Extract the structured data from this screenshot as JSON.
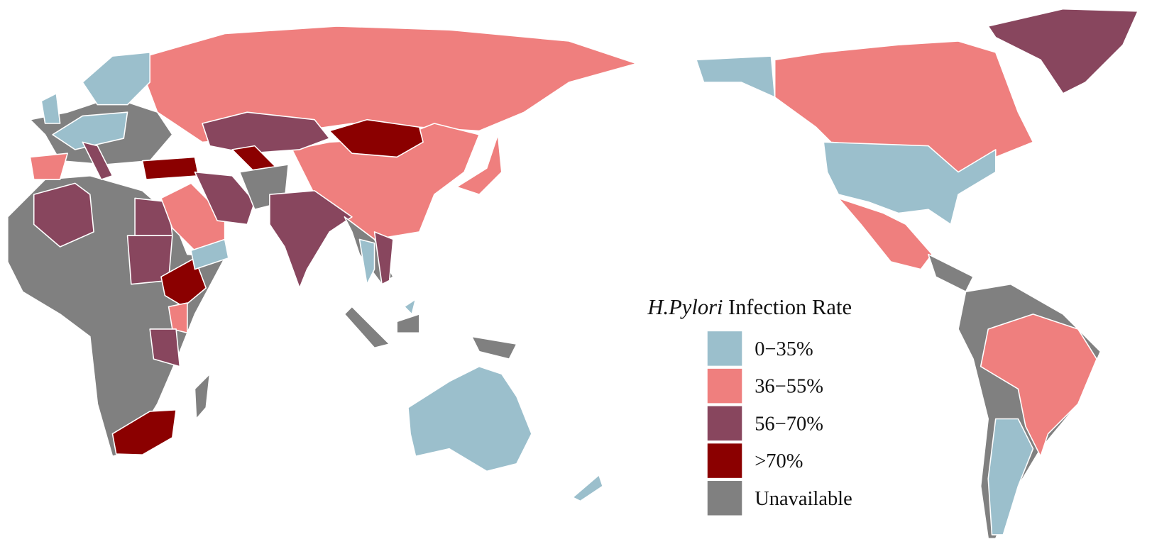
{
  "legend": {
    "title_italic": "H.Pylori",
    "title": "Infection Rate",
    "items": [
      {
        "label": "0−35%",
        "color": "#9bbfcc"
      },
      {
        "label": "36−55%",
        "color": "#ef7f7e"
      },
      {
        "label": "56−70%",
        "color": "#88465e"
      },
      {
        "label": ">70%",
        "color": "#8b0000"
      },
      {
        "label": "Unavailable",
        "color": "#808080"
      }
    ]
  }
}
